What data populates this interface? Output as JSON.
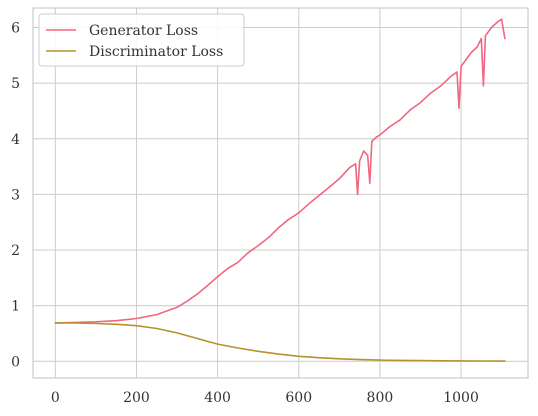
{
  "chart_data": {
    "type": "line",
    "title": "",
    "xlabel": "",
    "ylabel": "",
    "xlim": [
      -55,
      1165
    ],
    "ylim": [
      -0.3,
      6.35
    ],
    "xticks": [
      0,
      200,
      400,
      600,
      800,
      1000
    ],
    "yticks": [
      0,
      1,
      2,
      3,
      4,
      5,
      6
    ],
    "xtick_labels": [
      "0",
      "200",
      "400",
      "600",
      "800",
      "1000"
    ],
    "ytick_labels": [
      "0",
      "1",
      "2",
      "3",
      "4",
      "5",
      "6"
    ],
    "grid": true,
    "legend_position": "top-left",
    "series": [
      {
        "name": "Generator Loss",
        "color": "#f0677f",
        "x": [
          0,
          50,
          100,
          150,
          200,
          250,
          300,
          325,
          350,
          375,
          400,
          425,
          450,
          475,
          500,
          525,
          550,
          575,
          600,
          625,
          650,
          675,
          700,
          725,
          740,
          745,
          750,
          760,
          770,
          775,
          780,
          790,
          800,
          825,
          850,
          875,
          900,
          925,
          950,
          975,
          990,
          995,
          1000,
          1025,
          1040,
          1050,
          1055,
          1060,
          1075,
          1090,
          1100,
          1108
        ],
        "y": [
          0.69,
          0.7,
          0.71,
          0.73,
          0.77,
          0.84,
          0.97,
          1.08,
          1.21,
          1.36,
          1.52,
          1.67,
          1.78,
          1.95,
          2.08,
          2.22,
          2.4,
          2.55,
          2.67,
          2.83,
          2.98,
          3.13,
          3.28,
          3.48,
          3.55,
          3.0,
          3.6,
          3.78,
          3.7,
          3.2,
          3.95,
          4.02,
          4.07,
          4.22,
          4.34,
          4.52,
          4.65,
          4.82,
          4.95,
          5.12,
          5.2,
          4.55,
          5.3,
          5.55,
          5.65,
          5.8,
          4.95,
          5.85,
          6.0,
          6.1,
          6.15,
          5.8
        ]
      },
      {
        "name": "Discriminator Loss",
        "color": "#b5922c",
        "x": [
          0,
          50,
          100,
          150,
          200,
          250,
          300,
          350,
          400,
          450,
          500,
          550,
          600,
          650,
          700,
          750,
          800,
          850,
          900,
          950,
          1000,
          1050,
          1108
        ],
        "y": [
          0.69,
          0.688,
          0.68,
          0.665,
          0.64,
          0.59,
          0.51,
          0.41,
          0.31,
          0.24,
          0.18,
          0.13,
          0.09,
          0.065,
          0.045,
          0.03,
          0.022,
          0.016,
          0.012,
          0.009,
          0.007,
          0.005,
          0.004
        ]
      }
    ]
  }
}
